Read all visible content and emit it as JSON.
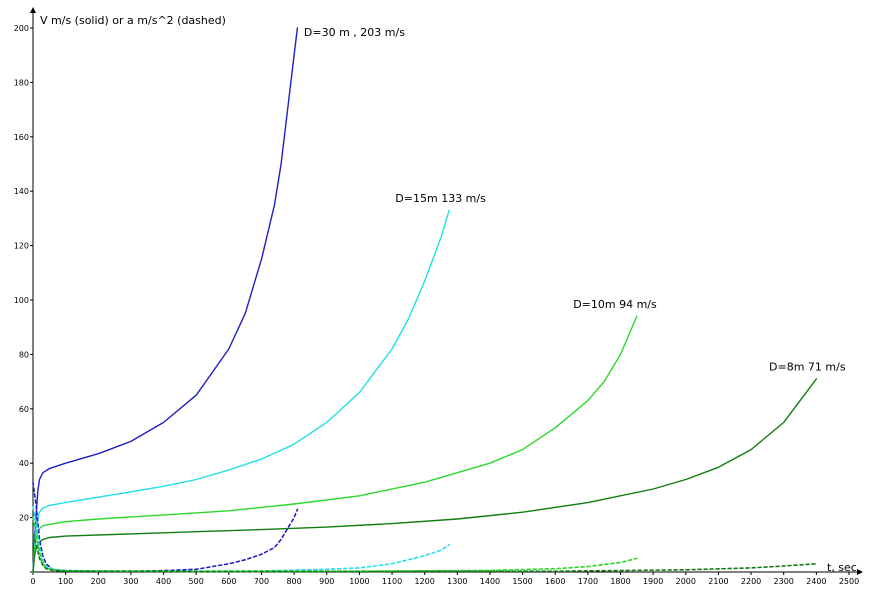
{
  "chart_data": {
    "type": "line",
    "ylabel": "V m/s (solid) or a m/s^2 (dashed)",
    "xlabel": "t, sec",
    "xlim": [
      0,
      2500
    ],
    "ylim": [
      0,
      200
    ],
    "x_ticks": [
      0,
      100,
      200,
      300,
      400,
      500,
      600,
      700,
      800,
      900,
      1000,
      1100,
      1200,
      1300,
      1400,
      1500,
      1600,
      1700,
      1800,
      1900,
      2000,
      2100,
      2200,
      2300,
      2400,
      2500
    ],
    "y_ticks": [
      0,
      20,
      40,
      60,
      80,
      100,
      120,
      140,
      160,
      180,
      200
    ],
    "grid": false,
    "legend": "none",
    "series": [
      {
        "color": "#1f1fc4",
        "style": "solid",
        "points": [
          [
            0,
            0
          ],
          [
            5,
            12
          ],
          [
            10,
            22
          ],
          [
            15,
            30
          ],
          [
            20,
            34
          ],
          [
            30,
            36.5
          ],
          [
            50,
            38
          ],
          [
            100,
            40
          ],
          [
            200,
            43.5
          ],
          [
            300,
            48
          ],
          [
            400,
            55
          ],
          [
            500,
            65
          ],
          [
            600,
            82
          ],
          [
            650,
            95
          ],
          [
            700,
            115
          ],
          [
            740,
            135
          ],
          [
            760,
            150
          ],
          [
            780,
            170
          ],
          [
            800,
            190
          ],
          [
            810,
            200
          ]
        ]
      },
      {
        "color": "#20dfe8",
        "style": "solid",
        "points": [
          [
            0,
            0
          ],
          [
            5,
            10
          ],
          [
            10,
            17
          ],
          [
            20,
            22
          ],
          [
            30,
            23.5
          ],
          [
            50,
            24.5
          ],
          [
            100,
            25.5
          ],
          [
            200,
            27.5
          ],
          [
            300,
            29.5
          ],
          [
            400,
            31.5
          ],
          [
            500,
            34
          ],
          [
            600,
            37.5
          ],
          [
            700,
            41.5
          ],
          [
            800,
            47
          ],
          [
            900,
            55
          ],
          [
            1000,
            66
          ],
          [
            1100,
            82
          ],
          [
            1150,
            93
          ],
          [
            1200,
            107
          ],
          [
            1250,
            123
          ],
          [
            1275,
            133
          ]
        ]
      },
      {
        "color": "#2bd82b",
        "style": "solid",
        "points": [
          [
            0,
            0
          ],
          [
            5,
            8
          ],
          [
            10,
            13
          ],
          [
            20,
            16
          ],
          [
            30,
            17
          ],
          [
            50,
            17.5
          ],
          [
            100,
            18.5
          ],
          [
            200,
            19.5
          ],
          [
            400,
            21
          ],
          [
            600,
            22.5
          ],
          [
            800,
            25
          ],
          [
            1000,
            28
          ],
          [
            1200,
            33
          ],
          [
            1400,
            40
          ],
          [
            1500,
            45
          ],
          [
            1600,
            53
          ],
          [
            1700,
            63
          ],
          [
            1750,
            70
          ],
          [
            1800,
            80
          ],
          [
            1850,
            94
          ]
        ]
      },
      {
        "color": "#107d10",
        "style": "solid",
        "points": [
          [
            0,
            0
          ],
          [
            5,
            6
          ],
          [
            10,
            9
          ],
          [
            20,
            11
          ],
          [
            30,
            12
          ],
          [
            50,
            12.7
          ],
          [
            100,
            13.2
          ],
          [
            300,
            14
          ],
          [
            500,
            14.8
          ],
          [
            700,
            15.6
          ],
          [
            900,
            16.5
          ],
          [
            1100,
            17.8
          ],
          [
            1300,
            19.5
          ],
          [
            1500,
            22
          ],
          [
            1700,
            25.5
          ],
          [
            1900,
            30.5
          ],
          [
            2000,
            34
          ],
          [
            2100,
            38.5
          ],
          [
            2200,
            45
          ],
          [
            2300,
            55
          ],
          [
            2400,
            71
          ]
        ]
      },
      {
        "color": "#1f1fc4",
        "style": "dashed",
        "points": [
          [
            0,
            33
          ],
          [
            10,
            24
          ],
          [
            20,
            12
          ],
          [
            30,
            6
          ],
          [
            40,
            3
          ],
          [
            60,
            1
          ],
          [
            100,
            0.5
          ],
          [
            200,
            0.3
          ],
          [
            300,
            0.3
          ],
          [
            400,
            0.5
          ],
          [
            500,
            1
          ],
          [
            600,
            3
          ],
          [
            650,
            4.5
          ],
          [
            700,
            6.5
          ],
          [
            740,
            9
          ],
          [
            760,
            12
          ],
          [
            780,
            16
          ],
          [
            800,
            20
          ],
          [
            810,
            23
          ]
        ]
      },
      {
        "color": "#20dfe8",
        "style": "dashed",
        "points": [
          [
            0,
            24
          ],
          [
            10,
            17
          ],
          [
            20,
            9
          ],
          [
            30,
            4
          ],
          [
            40,
            2
          ],
          [
            60,
            1
          ],
          [
            100,
            0.5
          ],
          [
            300,
            0.3
          ],
          [
            500,
            0.3
          ],
          [
            700,
            0.4
          ],
          [
            900,
            1
          ],
          [
            1000,
            1.5
          ],
          [
            1100,
            3
          ],
          [
            1200,
            6
          ],
          [
            1250,
            8
          ],
          [
            1275,
            10
          ]
        ]
      },
      {
        "color": "#2bd82b",
        "style": "dashed",
        "points": [
          [
            0,
            20
          ],
          [
            10,
            14
          ],
          [
            20,
            7
          ],
          [
            30,
            3
          ],
          [
            40,
            1.5
          ],
          [
            60,
            0.8
          ],
          [
            100,
            0.4
          ],
          [
            500,
            0.2
          ],
          [
            1000,
            0.3
          ],
          [
            1400,
            0.6
          ],
          [
            1600,
            1.2
          ],
          [
            1700,
            2
          ],
          [
            1800,
            3.5
          ],
          [
            1850,
            5
          ]
        ]
      },
      {
        "color": "#107d10",
        "style": "dashed",
        "points": [
          [
            0,
            14
          ],
          [
            10,
            10
          ],
          [
            20,
            5
          ],
          [
            30,
            2.5
          ],
          [
            40,
            1.2
          ],
          [
            60,
            0.6
          ],
          [
            100,
            0.3
          ],
          [
            800,
            0.2
          ],
          [
            1600,
            0.3
          ],
          [
            2000,
            0.8
          ],
          [
            2200,
            1.5
          ],
          [
            2300,
            2.2
          ],
          [
            2400,
            3
          ]
        ]
      }
    ],
    "annotations": [
      {
        "text": "D=30 m , 203 m/s",
        "x": 830,
        "y": 197
      },
      {
        "text": "D=15m  133 m/s",
        "x": 1110,
        "y": 136
      },
      {
        "text": "D=10m  94 m/s",
        "x": 1655,
        "y": 97
      },
      {
        "text": "D=8m   71 m/s",
        "x": 2255,
        "y": 74
      }
    ]
  }
}
